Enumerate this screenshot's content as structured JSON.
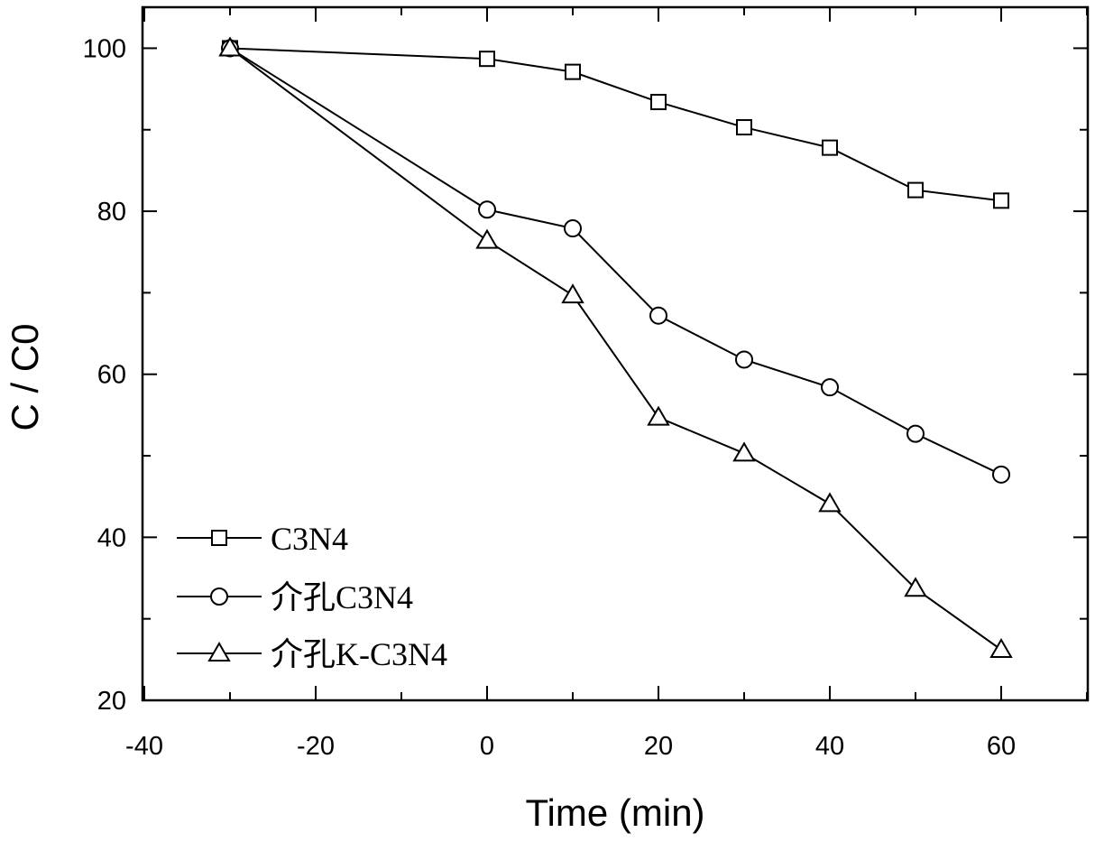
{
  "chart_data": {
    "type": "line",
    "title": "",
    "xlabel": "Time (min)",
    "ylabel": "C / C0",
    "xlim": [
      -40,
      70
    ],
    "ylim": [
      20,
      105
    ],
    "xticks": [
      -40,
      -20,
      0,
      20,
      40,
      60
    ],
    "yticks": [
      20,
      40,
      60,
      80,
      100
    ],
    "grid": false,
    "legend_position": "bottom-left",
    "x": [
      -30,
      0,
      10,
      20,
      30,
      40,
      50,
      60
    ],
    "series": [
      {
        "name": "C3N4",
        "marker": "square",
        "values": [
          100,
          98.7,
          97.1,
          93.4,
          90.3,
          87.8,
          82.6,
          81.3
        ]
      },
      {
        "name": "介孔C3N4",
        "marker": "circle",
        "values": [
          100,
          80.2,
          77.9,
          67.2,
          61.8,
          58.4,
          52.7,
          47.7
        ]
      },
      {
        "name": "介孔K-C3N4",
        "marker": "triangle",
        "values": [
          100,
          76.4,
          69.7,
          54.7,
          50.3,
          44.1,
          33.7,
          26.2
        ]
      }
    ]
  }
}
